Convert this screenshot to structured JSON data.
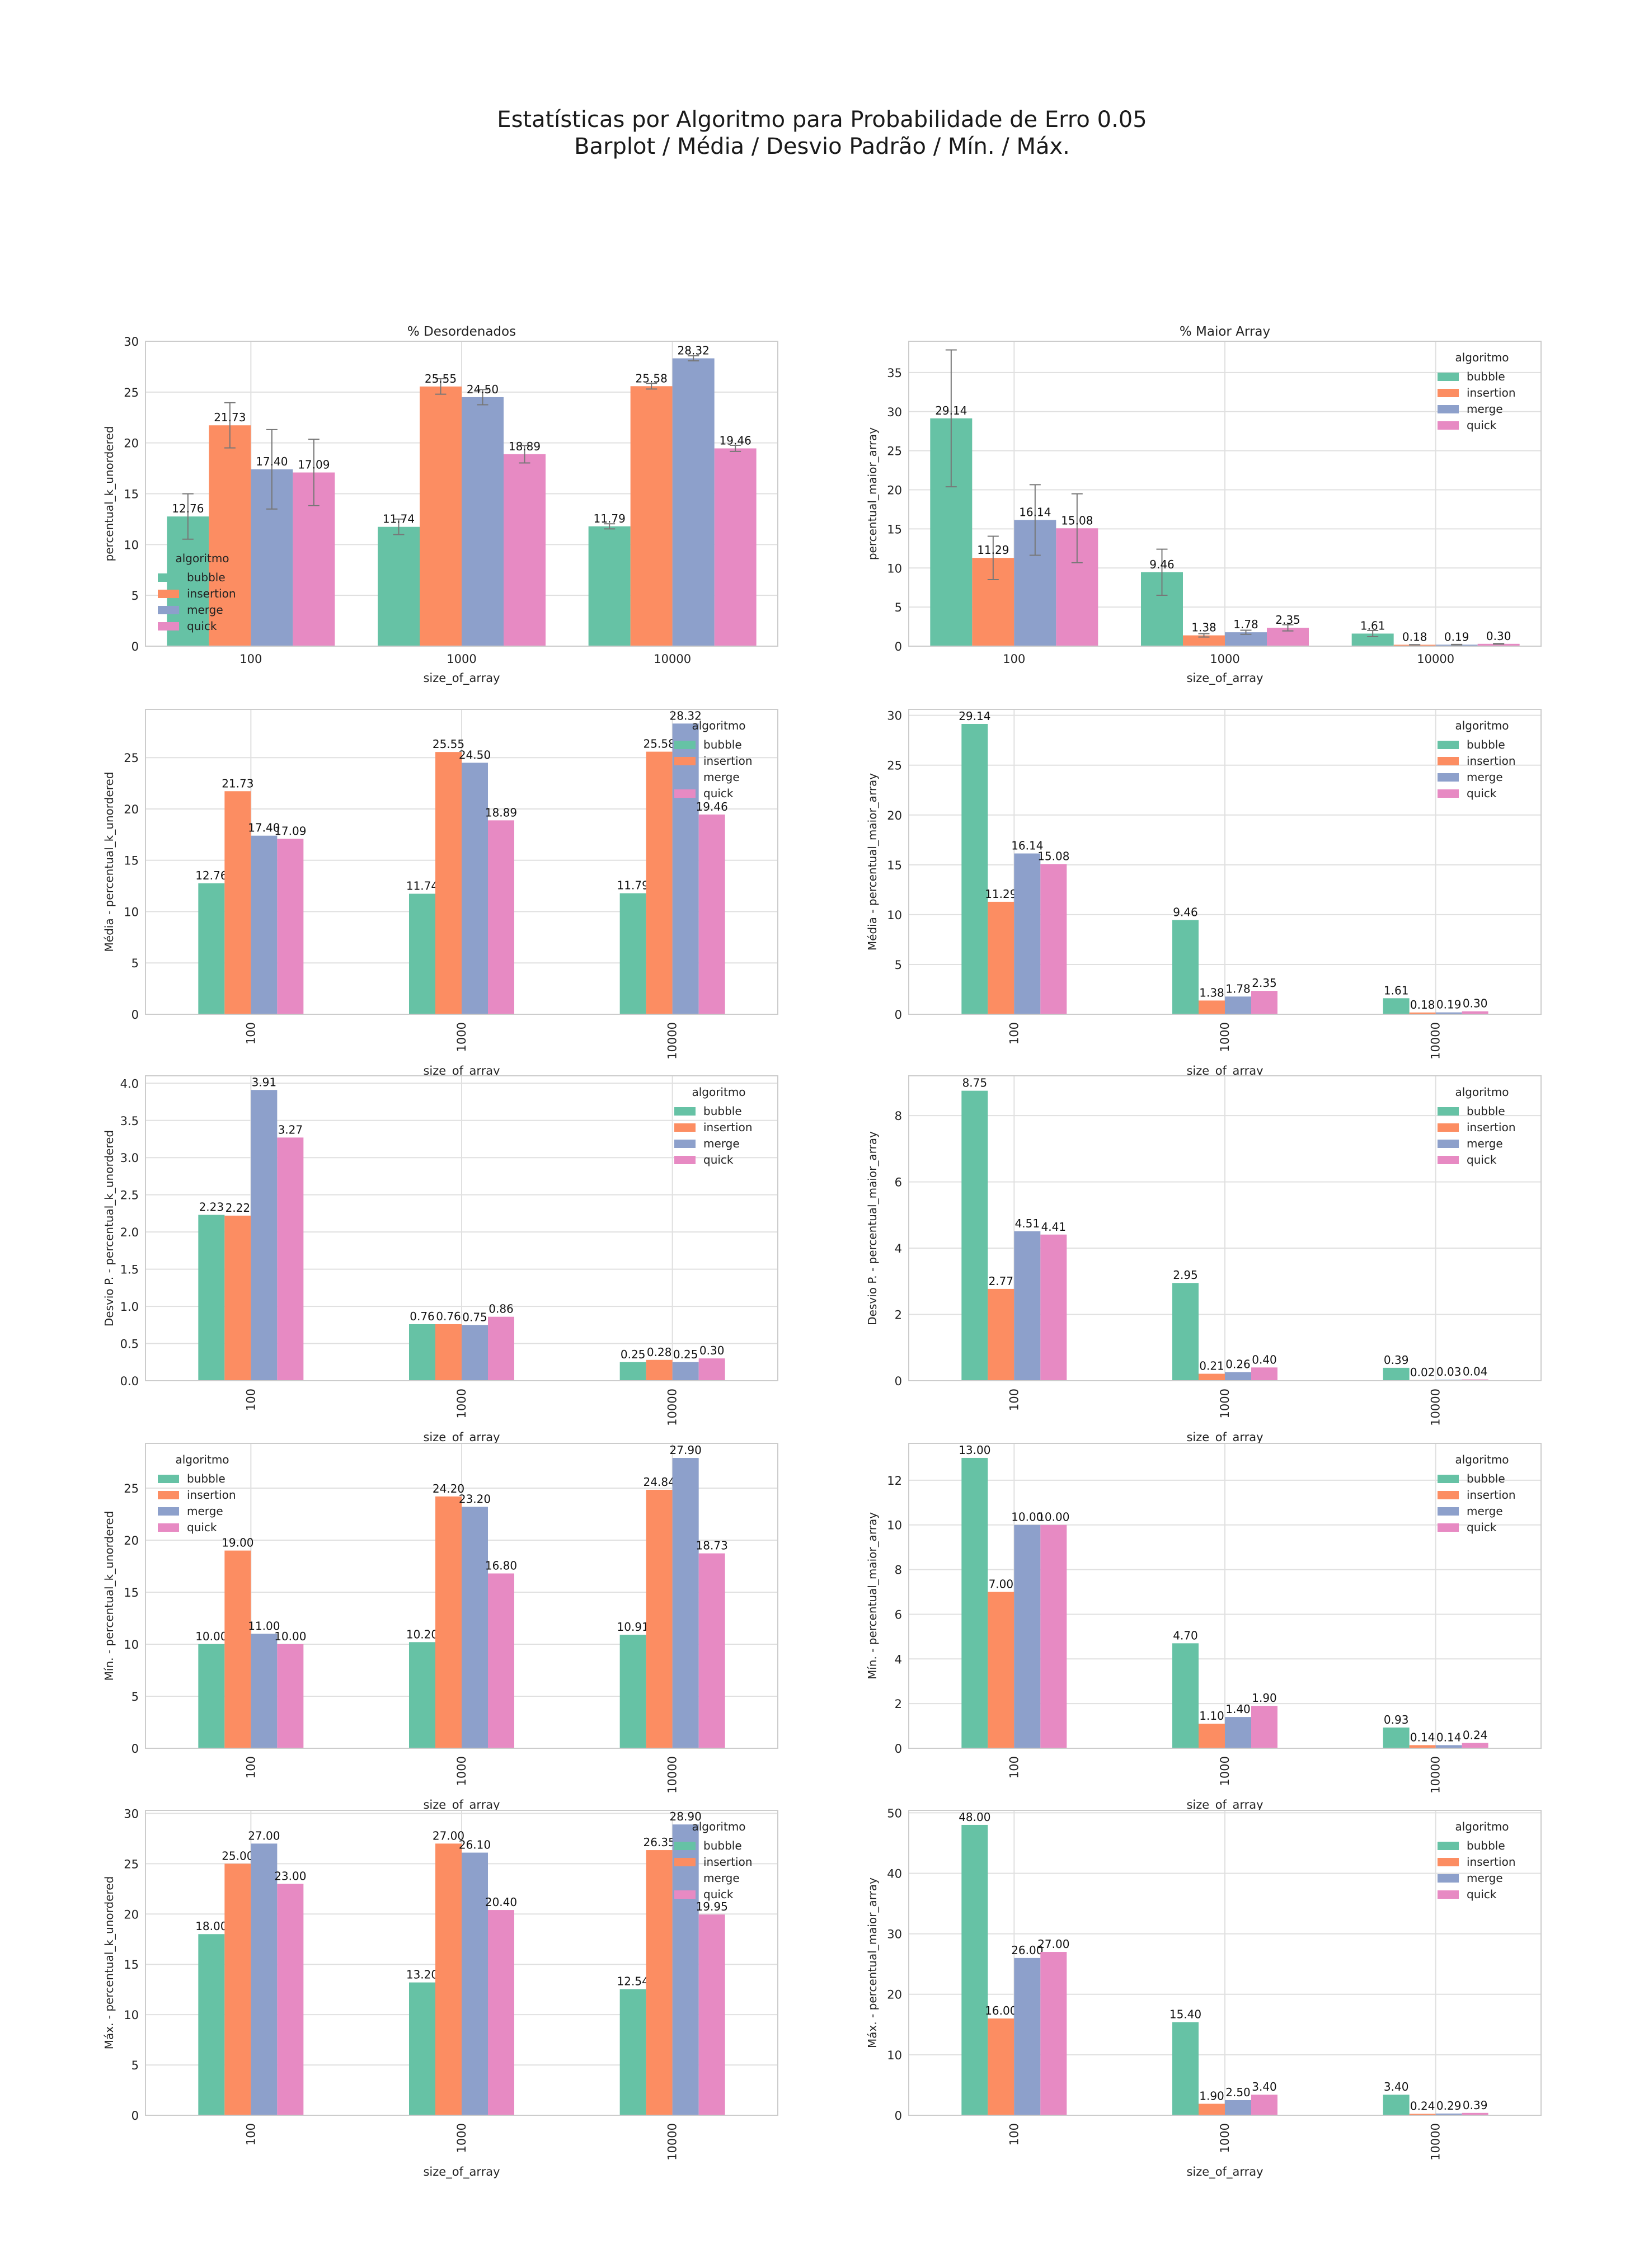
{
  "figure": {
    "title_line1": "Estatísticas por Algoritmo para Probabilidade de Erro 0.05",
    "title_line2": "Barplot / Média / Desvio Padrão / Mín. / Máx."
  },
  "colors": {
    "bubble": "#66c2a5",
    "insertion": "#fc8d62",
    "merge": "#8da0cb",
    "quick": "#e78ac3",
    "grid": "#e0e0e0",
    "errorbar": "#777777"
  },
  "chart_data": [
    {
      "id": "c0",
      "type": "bar",
      "title": "% Desordenados",
      "xlabel": "size_of_array",
      "ylabel": "percentual_k_unordered",
      "categories": [
        "100",
        "1000",
        "10000"
      ],
      "xtick_rotation": 0,
      "ylim": [
        0,
        30
      ],
      "yticks": [
        0,
        5,
        10,
        15,
        20,
        25,
        30
      ],
      "tick_decimals": 0,
      "legend": {
        "title": "algoritmo",
        "position": "lower-left"
      },
      "error_bars": true,
      "series": [
        {
          "name": "bubble",
          "values": [
            12.76,
            11.74,
            11.79
          ],
          "errors": [
            2.23,
            0.76,
            0.25
          ],
          "labels": [
            "12.76",
            "11.74",
            "11.79"
          ]
        },
        {
          "name": "insertion",
          "values": [
            21.73,
            25.55,
            25.58
          ],
          "errors": [
            2.22,
            0.76,
            0.28
          ],
          "labels": [
            "21.73",
            "25.55",
            "25.58"
          ]
        },
        {
          "name": "merge",
          "values": [
            17.4,
            24.5,
            28.32
          ],
          "errors": [
            3.91,
            0.75,
            0.25
          ],
          "labels": [
            "17.40",
            "24.50",
            "28.32"
          ]
        },
        {
          "name": "quick",
          "values": [
            17.09,
            18.89,
            19.46
          ],
          "errors": [
            3.27,
            0.86,
            0.3
          ],
          "labels": [
            "17.09",
            "18.89",
            "19.46"
          ]
        }
      ]
    },
    {
      "id": "c1",
      "type": "bar",
      "title": "% Maior Array",
      "xlabel": "size_of_array",
      "ylabel": "percentual_maior_array",
      "categories": [
        "100",
        "1000",
        "10000"
      ],
      "xtick_rotation": 0,
      "ylim": [
        0,
        39
      ],
      "yticks": [
        0,
        5,
        10,
        15,
        20,
        25,
        30,
        35
      ],
      "tick_decimals": 0,
      "legend": {
        "title": "algoritmo",
        "position": "upper-right"
      },
      "error_bars": true,
      "series": [
        {
          "name": "bubble",
          "values": [
            29.14,
            9.46,
            1.61
          ],
          "errors": [
            8.75,
            2.95,
            0.39
          ],
          "labels": [
            "29.14",
            "9.46",
            "1.61"
          ]
        },
        {
          "name": "insertion",
          "values": [
            11.29,
            1.38,
            0.18
          ],
          "errors": [
            2.77,
            0.21,
            0.02
          ],
          "labels": [
            "11.29",
            "1.38",
            "0.18"
          ]
        },
        {
          "name": "merge",
          "values": [
            16.14,
            1.78,
            0.19
          ],
          "errors": [
            4.51,
            0.26,
            0.03
          ],
          "labels": [
            "16.14",
            "1.78",
            "0.19"
          ]
        },
        {
          "name": "quick",
          "values": [
            15.08,
            2.35,
            0.3
          ],
          "errors": [
            4.41,
            0.4,
            0.04
          ],
          "labels": [
            "15.08",
            "2.35",
            "0.30"
          ]
        }
      ]
    },
    {
      "id": "c2",
      "type": "bar",
      "title": "",
      "xlabel": "size_of_array",
      "ylabel": "Média - percentual_k_unordered",
      "categories": [
        "100",
        "1000",
        "10000"
      ],
      "xtick_rotation": -90,
      "ylim": [
        0,
        29.7
      ],
      "yticks": [
        0,
        5,
        10,
        15,
        20,
        25
      ],
      "tick_decimals": 0,
      "legend": {
        "title": "algoritmo",
        "position": "upper-right"
      },
      "error_bars": false,
      "series": [
        {
          "name": "bubble",
          "values": [
            12.76,
            11.74,
            11.79
          ],
          "labels": [
            "12.76",
            "11.74",
            "11.79"
          ]
        },
        {
          "name": "insertion",
          "values": [
            21.73,
            25.55,
            25.58
          ],
          "labels": [
            "21.73",
            "25.55",
            "25.58"
          ]
        },
        {
          "name": "merge",
          "values": [
            17.4,
            24.5,
            28.32
          ],
          "labels": [
            "17.40",
            "24.50",
            "28.32"
          ]
        },
        {
          "name": "quick",
          "values": [
            17.09,
            18.89,
            19.46
          ],
          "labels": [
            "17.09",
            "18.89",
            "19.46"
          ]
        }
      ]
    },
    {
      "id": "c3",
      "type": "bar",
      "title": "",
      "xlabel": "size_of_array",
      "ylabel": "Média - percentual_maior_array",
      "categories": [
        "100",
        "1000",
        "10000"
      ],
      "xtick_rotation": -90,
      "ylim": [
        0,
        30.6
      ],
      "yticks": [
        0,
        5,
        10,
        15,
        20,
        25,
        30
      ],
      "tick_decimals": 0,
      "legend": {
        "title": "algoritmo",
        "position": "upper-right"
      },
      "error_bars": false,
      "series": [
        {
          "name": "bubble",
          "values": [
            29.14,
            9.46,
            1.61
          ],
          "labels": [
            "29.14",
            "9.46",
            "1.61"
          ]
        },
        {
          "name": "insertion",
          "values": [
            11.29,
            1.38,
            0.18
          ],
          "labels": [
            "11.29",
            "1.38",
            "0.18"
          ]
        },
        {
          "name": "merge",
          "values": [
            16.14,
            1.78,
            0.19
          ],
          "labels": [
            "16.14",
            "1.78",
            "0.19"
          ]
        },
        {
          "name": "quick",
          "values": [
            15.08,
            2.35,
            0.3
          ],
          "labels": [
            "15.08",
            "2.35",
            "0.30"
          ]
        }
      ]
    },
    {
      "id": "c4",
      "type": "bar",
      "title": "",
      "xlabel": "size_of_array",
      "ylabel": "Desvio P. - percentual_k_unordered",
      "categories": [
        "100",
        "1000",
        "10000"
      ],
      "xtick_rotation": -90,
      "ylim": [
        0,
        4.1
      ],
      "yticks": [
        0,
        0.5,
        1.0,
        1.5,
        2.0,
        2.5,
        3.0,
        3.5,
        4.0
      ],
      "tick_decimals": 1,
      "legend": {
        "title": "algoritmo",
        "position": "upper-right"
      },
      "error_bars": false,
      "series": [
        {
          "name": "bubble",
          "values": [
            2.23,
            0.76,
            0.25
          ],
          "labels": [
            "2.23",
            "0.76",
            "0.25"
          ]
        },
        {
          "name": "insertion",
          "values": [
            2.22,
            0.76,
            0.28
          ],
          "labels": [
            "2.22",
            "0.76",
            "0.28"
          ]
        },
        {
          "name": "merge",
          "values": [
            3.91,
            0.75,
            0.25
          ],
          "labels": [
            "3.91",
            "0.75",
            "0.25"
          ]
        },
        {
          "name": "quick",
          "values": [
            3.27,
            0.86,
            0.3
          ],
          "labels": [
            "3.27",
            "0.86",
            "0.30"
          ]
        }
      ]
    },
    {
      "id": "c5",
      "type": "bar",
      "title": "",
      "xlabel": "size_of_array",
      "ylabel": "Desvio P. - percentual_maior_array",
      "categories": [
        "100",
        "1000",
        "10000"
      ],
      "xtick_rotation": -90,
      "ylim": [
        0,
        9.2
      ],
      "yticks": [
        0,
        2,
        4,
        6,
        8
      ],
      "tick_decimals": 0,
      "legend": {
        "title": "algoritmo",
        "position": "upper-right"
      },
      "error_bars": false,
      "series": [
        {
          "name": "bubble",
          "values": [
            8.75,
            2.95,
            0.39
          ],
          "labels": [
            "8.75",
            "2.95",
            "0.39"
          ]
        },
        {
          "name": "insertion",
          "values": [
            2.77,
            0.21,
            0.02
          ],
          "labels": [
            "2.77",
            "0.21",
            "0.02"
          ]
        },
        {
          "name": "merge",
          "values": [
            4.51,
            0.26,
            0.03
          ],
          "labels": [
            "4.51",
            "0.26",
            "0.03"
          ]
        },
        {
          "name": "quick",
          "values": [
            4.41,
            0.4,
            0.04
          ],
          "labels": [
            "4.41",
            "0.40",
            "0.04"
          ]
        }
      ]
    },
    {
      "id": "c6",
      "type": "bar",
      "title": "",
      "xlabel": "size_of_array",
      "ylabel": "Mín. - percentual_k_unordered",
      "categories": [
        "100",
        "1000",
        "10000"
      ],
      "xtick_rotation": -90,
      "ylim": [
        0,
        29.3
      ],
      "yticks": [
        0,
        5,
        10,
        15,
        20,
        25
      ],
      "tick_decimals": 0,
      "legend": {
        "title": "algoritmo",
        "position": "upper-left"
      },
      "error_bars": false,
      "series": [
        {
          "name": "bubble",
          "values": [
            10.0,
            10.2,
            10.91
          ],
          "labels": [
            "10.00",
            "10.20",
            "10.91"
          ]
        },
        {
          "name": "insertion",
          "values": [
            19.0,
            24.2,
            24.84
          ],
          "labels": [
            "19.00",
            "24.20",
            "24.84"
          ]
        },
        {
          "name": "merge",
          "values": [
            11.0,
            23.2,
            27.9
          ],
          "labels": [
            "11.00",
            "23.20",
            "27.90"
          ]
        },
        {
          "name": "quick",
          "values": [
            10.0,
            16.8,
            18.73
          ],
          "labels": [
            "10.00",
            "16.80",
            "18.73"
          ]
        }
      ]
    },
    {
      "id": "c7",
      "type": "bar",
      "title": "",
      "xlabel": "size_of_array",
      "ylabel": "Mín. - percentual_maior_array",
      "categories": [
        "100",
        "1000",
        "10000"
      ],
      "xtick_rotation": -90,
      "ylim": [
        0,
        13.65
      ],
      "yticks": [
        0,
        2,
        4,
        6,
        8,
        10,
        12
      ],
      "tick_decimals": 0,
      "legend": {
        "title": "algoritmo",
        "position": "upper-right"
      },
      "error_bars": false,
      "series": [
        {
          "name": "bubble",
          "values": [
            13.0,
            4.7,
            0.93
          ],
          "labels": [
            "13.00",
            "4.70",
            "0.93"
          ]
        },
        {
          "name": "insertion",
          "values": [
            7.0,
            1.1,
            0.14
          ],
          "labels": [
            "7.00",
            "1.10",
            "0.14"
          ]
        },
        {
          "name": "merge",
          "values": [
            10.0,
            1.4,
            0.14
          ],
          "labels": [
            "10.00",
            "1.40",
            "0.14"
          ]
        },
        {
          "name": "quick",
          "values": [
            10.0,
            1.9,
            0.24
          ],
          "labels": [
            "10.00",
            "1.90",
            "0.24"
          ]
        }
      ]
    },
    {
      "id": "c8",
      "type": "bar",
      "title": "",
      "xlabel": "size_of_array",
      "ylabel": "Máx. - percentual_k_unordered",
      "categories": [
        "100",
        "1000",
        "10000"
      ],
      "xtick_rotation": -90,
      "ylim": [
        0,
        30.3
      ],
      "yticks": [
        0,
        5,
        10,
        15,
        20,
        25,
        30
      ],
      "tick_decimals": 0,
      "legend": {
        "title": "algoritmo",
        "position": "upper-right"
      },
      "error_bars": false,
      "series": [
        {
          "name": "bubble",
          "values": [
            18.0,
            13.2,
            12.54
          ],
          "labels": [
            "18.00",
            "13.20",
            "12.54"
          ]
        },
        {
          "name": "insertion",
          "values": [
            25.0,
            27.0,
            26.35
          ],
          "labels": [
            "25.00",
            "27.00",
            "26.35"
          ]
        },
        {
          "name": "merge",
          "values": [
            27.0,
            26.1,
            28.9
          ],
          "labels": [
            "27.00",
            "26.10",
            "28.90"
          ]
        },
        {
          "name": "quick",
          "values": [
            23.0,
            20.4,
            19.95
          ],
          "labels": [
            "23.00",
            "20.40",
            "19.95"
          ]
        }
      ]
    },
    {
      "id": "c9",
      "type": "bar",
      "title": "",
      "xlabel": "size_of_array",
      "ylabel": "Máx. - percentual_maior_array",
      "categories": [
        "100",
        "1000",
        "10000"
      ],
      "xtick_rotation": -90,
      "ylim": [
        0,
        50.4
      ],
      "yticks": [
        0,
        10,
        20,
        30,
        40,
        50
      ],
      "tick_decimals": 0,
      "legend": {
        "title": "algoritmo",
        "position": "upper-right"
      },
      "error_bars": false,
      "series": [
        {
          "name": "bubble",
          "values": [
            48.0,
            15.4,
            3.4
          ],
          "labels": [
            "48.00",
            "15.40",
            "3.40"
          ]
        },
        {
          "name": "insertion",
          "values": [
            16.0,
            1.9,
            0.24
          ],
          "labels": [
            "16.00",
            "1.90",
            "0.24"
          ]
        },
        {
          "name": "merge",
          "values": [
            26.0,
            2.5,
            0.29
          ],
          "labels": [
            "26.00",
            "2.50",
            "0.29"
          ]
        },
        {
          "name": "quick",
          "values": [
            27.0,
            3.4,
            0.39
          ],
          "labels": [
            "27.00",
            "3.40",
            "0.39"
          ]
        }
      ]
    }
  ]
}
